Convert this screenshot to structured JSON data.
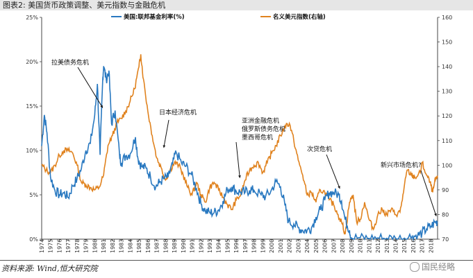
{
  "figure_title": "图表2:   美国货币政策调整、美元指数与金融危机",
  "source_note": "资料来源: Wind,恒大研究院",
  "watermark": "国民经略",
  "colors": {
    "rate": "#2878c0",
    "dollar": "#e0821e"
  },
  "chart_data": {
    "type": "line",
    "title": "",
    "xlabel": "",
    "ylabel": "",
    "x_ticks": [
      "1974",
      "1975",
      "1976",
      "1977",
      "1978",
      "1979",
      "1980",
      "1981",
      "1982",
      "1983",
      "1984",
      "1985",
      "1986",
      "1987",
      "1988",
      "1989",
      "1990",
      "1991",
      "1992",
      "1993",
      "1994",
      "1995",
      "1996",
      "1997",
      "1998",
      "1999",
      "2000",
      "2001",
      "2002",
      "2003",
      "2004",
      "2005",
      "2006",
      "2007",
      "2008",
      "2009",
      "2010",
      "2011",
      "2012",
      "2013",
      "2014",
      "2015",
      "2016",
      "2017",
      "2018"
    ],
    "y_left_ticks": [
      "0%",
      "5%",
      "10%",
      "15%",
      "20%",
      "25%"
    ],
    "y_left_range": [
      0,
      25
    ],
    "y_right_ticks": [
      "70",
      "80",
      "90",
      "100",
      "110",
      "120",
      "130",
      "140",
      "150",
      "160"
    ],
    "y_right_range": [
      70,
      160
    ],
    "legend_position": "top",
    "series": [
      {
        "name": "美国:联邦基金利率(%)",
        "axis": "left",
        "points": [
          [
            1974.0,
            10.5
          ],
          [
            1974.3,
            14.0
          ],
          [
            1974.6,
            12.0
          ],
          [
            1975.0,
            7.0
          ],
          [
            1975.5,
            5.5
          ],
          [
            1976.0,
            5.0
          ],
          [
            1976.5,
            5.2
          ],
          [
            1977.0,
            4.7
          ],
          [
            1977.5,
            6.0
          ],
          [
            1978.0,
            6.8
          ],
          [
            1978.5,
            8.0
          ],
          [
            1979.0,
            10.0
          ],
          [
            1979.5,
            10.8
          ],
          [
            1980.0,
            14.0
          ],
          [
            1980.3,
            17.5
          ],
          [
            1980.6,
            9.5
          ],
          [
            1980.9,
            18.0
          ],
          [
            1981.0,
            19.5
          ],
          [
            1981.3,
            18.0
          ],
          [
            1981.6,
            19.0
          ],
          [
            1981.9,
            13.0
          ],
          [
            1982.3,
            14.5
          ],
          [
            1982.8,
            9.5
          ],
          [
            1983.0,
            8.6
          ],
          [
            1983.5,
            9.4
          ],
          [
            1984.0,
            9.6
          ],
          [
            1984.6,
            11.5
          ],
          [
            1984.9,
            9.0
          ],
          [
            1985.3,
            8.2
          ],
          [
            1985.8,
            8.0
          ],
          [
            1986.3,
            7.0
          ],
          [
            1986.9,
            5.9
          ],
          [
            1987.3,
            6.4
          ],
          [
            1987.8,
            6.8
          ],
          [
            1988.3,
            7.0
          ],
          [
            1988.8,
            8.5
          ],
          [
            1989.2,
            9.8
          ],
          [
            1989.8,
            8.6
          ],
          [
            1990.3,
            8.2
          ],
          [
            1990.9,
            7.3
          ],
          [
            1991.5,
            5.7
          ],
          [
            1992.0,
            4.0
          ],
          [
            1992.5,
            3.2
          ],
          [
            1993.0,
            3.0
          ],
          [
            1993.5,
            3.0
          ],
          [
            1994.0,
            3.3
          ],
          [
            1994.5,
            4.3
          ],
          [
            1995.0,
            5.6
          ],
          [
            1995.5,
            5.9
          ],
          [
            1996.0,
            5.4
          ],
          [
            1996.5,
            5.3
          ],
          [
            1997.0,
            5.3
          ],
          [
            1997.5,
            5.5
          ],
          [
            1998.0,
            5.5
          ],
          [
            1998.8,
            5.0
          ],
          [
            1999.3,
            4.8
          ],
          [
            1999.9,
            5.4
          ],
          [
            2000.5,
            6.5
          ],
          [
            2001.0,
            5.9
          ],
          [
            2001.5,
            3.8
          ],
          [
            2001.9,
            2.0
          ],
          [
            2002.5,
            1.7
          ],
          [
            2003.0,
            1.3
          ],
          [
            2003.5,
            1.0
          ],
          [
            2004.0,
            1.0
          ],
          [
            2004.5,
            1.3
          ],
          [
            2005.0,
            2.5
          ],
          [
            2005.5,
            3.3
          ],
          [
            2006.0,
            4.4
          ],
          [
            2006.5,
            5.25
          ],
          [
            2007.0,
            5.25
          ],
          [
            2007.6,
            5.0
          ],
          [
            2007.9,
            4.3
          ],
          [
            2008.3,
            2.2
          ],
          [
            2008.8,
            1.0
          ],
          [
            2009.0,
            0.15
          ],
          [
            2010.0,
            0.15
          ],
          [
            2011.0,
            0.1
          ],
          [
            2012.0,
            0.15
          ],
          [
            2013.0,
            0.1
          ],
          [
            2014.0,
            0.1
          ],
          [
            2015.0,
            0.12
          ],
          [
            2015.9,
            0.35
          ],
          [
            2016.5,
            0.4
          ],
          [
            2017.0,
            0.7
          ],
          [
            2017.5,
            1.15
          ],
          [
            2018.0,
            1.45
          ],
          [
            2018.5,
            1.9
          ],
          [
            2018.75,
            2.0
          ]
        ]
      },
      {
        "name": "名义美元指数(右轴)",
        "axis": "right",
        "points": [
          [
            1974.0,
            100
          ],
          [
            1974.5,
            98
          ],
          [
            1975.0,
            97
          ],
          [
            1975.5,
            100
          ],
          [
            1976.0,
            104
          ],
          [
            1976.5,
            106
          ],
          [
            1977.0,
            106
          ],
          [
            1977.5,
            105
          ],
          [
            1978.0,
            100
          ],
          [
            1978.5,
            93
          ],
          [
            1979.0,
            92
          ],
          [
            1979.5,
            91
          ],
          [
            1980.0,
            90
          ],
          [
            1980.5,
            91
          ],
          [
            1981.0,
            96
          ],
          [
            1981.5,
            108
          ],
          [
            1982.0,
            112
          ],
          [
            1982.5,
            117
          ],
          [
            1983.0,
            119
          ],
          [
            1983.5,
            122
          ],
          [
            1984.0,
            126
          ],
          [
            1984.5,
            131
          ],
          [
            1985.0,
            140
          ],
          [
            1985.2,
            145
          ],
          [
            1985.5,
            135
          ],
          [
            1986.0,
            122
          ],
          [
            1986.5,
            112
          ],
          [
            1987.0,
            103
          ],
          [
            1987.5,
            99
          ],
          [
            1988.0,
            94
          ],
          [
            1988.5,
            98
          ],
          [
            1989.0,
            101
          ],
          [
            1989.5,
            100
          ],
          [
            1990.0,
            96
          ],
          [
            1990.5,
            91
          ],
          [
            1991.0,
            88
          ],
          [
            1991.5,
            93
          ],
          [
            1992.0,
            88
          ],
          [
            1992.5,
            85
          ],
          [
            1993.0,
            91
          ],
          [
            1993.5,
            93
          ],
          [
            1994.0,
            90
          ],
          [
            1994.5,
            87
          ],
          [
            1995.0,
            84
          ],
          [
            1995.5,
            82
          ],
          [
            1996.0,
            86
          ],
          [
            1996.5,
            88
          ],
          [
            1997.0,
            94
          ],
          [
            1997.5,
            98
          ],
          [
            1998.0,
            100
          ],
          [
            1998.5,
            101
          ],
          [
            1999.0,
            97
          ],
          [
            1999.5,
            101
          ],
          [
            2000.0,
            105
          ],
          [
            2000.5,
            108
          ],
          [
            2001.0,
            112
          ],
          [
            2001.5,
            116
          ],
          [
            2002.0,
            117
          ],
          [
            2002.5,
            110
          ],
          [
            2003.0,
            102
          ],
          [
            2003.5,
            96
          ],
          [
            2004.0,
            88
          ],
          [
            2004.5,
            89
          ],
          [
            2005.0,
            85
          ],
          [
            2005.5,
            90
          ],
          [
            2006.0,
            89
          ],
          [
            2006.5,
            86
          ],
          [
            2007.0,
            84
          ],
          [
            2007.5,
            80
          ],
          [
            2008.0,
            76
          ],
          [
            2008.3,
            72
          ],
          [
            2008.8,
            85
          ],
          [
            2009.2,
            88
          ],
          [
            2009.6,
            77
          ],
          [
            2010.0,
            78
          ],
          [
            2010.5,
            85
          ],
          [
            2011.0,
            78
          ],
          [
            2011.5,
            74
          ],
          [
            2012.0,
            80
          ],
          [
            2012.5,
            82
          ],
          [
            2013.0,
            80
          ],
          [
            2013.5,
            82
          ],
          [
            2014.0,
            80
          ],
          [
            2014.5,
            81
          ],
          [
            2014.9,
            89
          ],
          [
            2015.3,
            98
          ],
          [
            2015.8,
            96
          ],
          [
            2016.2,
            95
          ],
          [
            2016.8,
            97
          ],
          [
            2017.0,
            101
          ],
          [
            2017.5,
            96
          ],
          [
            2017.9,
            93
          ],
          [
            2018.2,
            89
          ],
          [
            2018.5,
            94
          ],
          [
            2018.75,
            95
          ]
        ]
      }
    ],
    "annotations": [
      {
        "text": "拉美债务危机",
        "x": 1980.9,
        "y_left": 14.8
      },
      {
        "text": "日本经济危机",
        "x": 1987.8,
        "y_left": 10.3
      },
      {
        "text": "亚洲金融危机",
        "x": 1996.4,
        "y_left": 6.9
      },
      {
        "text": "俄罗斯债务危机",
        "x": null,
        "y_left": null
      },
      {
        "text": "墨西哥危机",
        "x": null,
        "y_left": null
      },
      {
        "text": "次贷危机",
        "x": 2007.7,
        "y_left": 5.7
      },
      {
        "text": "新兴市场危机?",
        "x": 2018.6,
        "y_left": 2.6
      }
    ]
  }
}
